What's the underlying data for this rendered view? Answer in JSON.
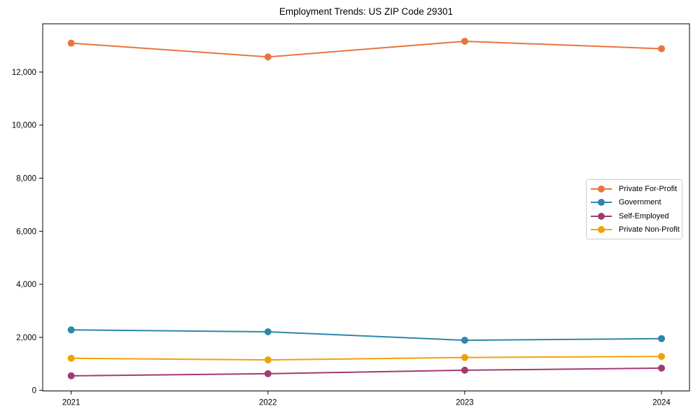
{
  "chart_data": {
    "type": "line",
    "title": "Employment Trends: US ZIP Code 29301",
    "xlabel": "",
    "ylabel": "",
    "categories": [
      "2021",
      "2022",
      "2023",
      "2024"
    ],
    "series": [
      {
        "name": "Private For-Profit",
        "color": "#E8763D",
        "values": [
          13090,
          12570,
          13160,
          12880
        ]
      },
      {
        "name": "Government",
        "color": "#2E86AB",
        "values": [
          2280,
          2210,
          1890,
          1950
        ]
      },
      {
        "name": "Self-Employed",
        "color": "#A23B72",
        "values": [
          550,
          630,
          760,
          840
        ]
      },
      {
        "name": "Private Non-Profit",
        "color": "#F2A104",
        "values": [
          1210,
          1150,
          1240,
          1280
        ]
      }
    ],
    "yticks": [
      0,
      2000,
      4000,
      6000,
      8000,
      10000,
      12000
    ],
    "ytick_labels": [
      "0",
      "2,000",
      "4,000",
      "6,000",
      "8,000",
      "10,000",
      "12,000"
    ],
    "ylim": [
      0,
      13840
    ],
    "grid": false,
    "legend_position": "center right",
    "marker": "circle",
    "axis_color": "#000000"
  }
}
